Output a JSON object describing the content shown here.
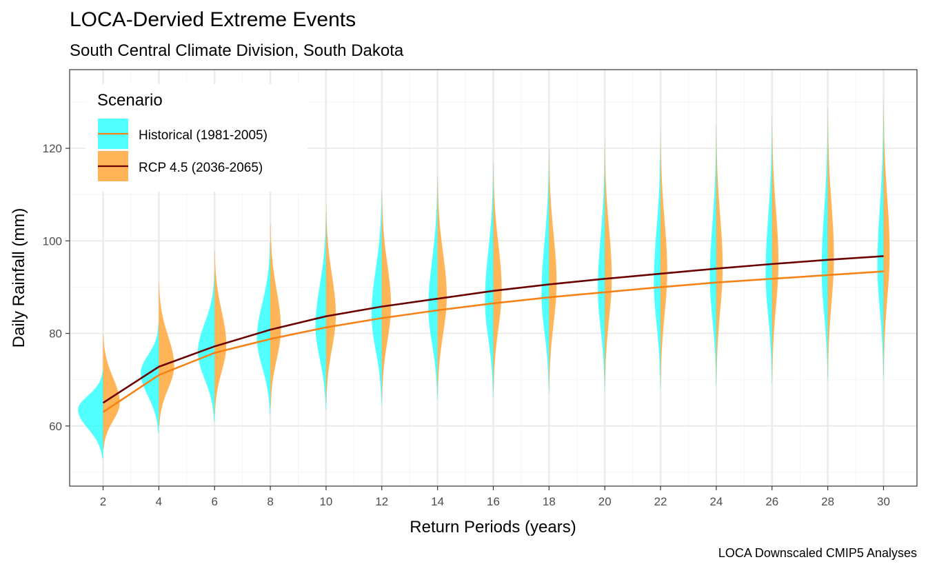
{
  "colors": {
    "historical_fill": "#00FFFF",
    "historical_line": "#F58216",
    "rcp45_fill": "#FFA028",
    "rcp45_line": "#6B0000",
    "grid_major": "#EBEBEB",
    "grid_minor": "#F4F4F4",
    "panel_border": "#333333"
  },
  "chart_data": {
    "type": "violin",
    "title": "LOCA-Dervied Extreme Events",
    "subtitle": "South Central Climate Division, South Dakota",
    "xlabel": "Return Periods (years)",
    "ylabel": "Daily Rainfall (mm)",
    "caption": "LOCA Downscaled CMIP5 Analyses",
    "x": [
      2,
      4,
      6,
      8,
      10,
      12,
      14,
      16,
      18,
      20,
      22,
      24,
      26,
      28,
      30
    ],
    "x_ticks": [
      2,
      4,
      6,
      8,
      10,
      12,
      14,
      16,
      18,
      20,
      22,
      24,
      26,
      28,
      30
    ],
    "y_ticks": [
      60,
      80,
      100,
      120
    ],
    "xlim": [
      0.8,
      31.2
    ],
    "ylim": [
      47,
      137
    ],
    "grid": true,
    "legend": {
      "title": "Scenario",
      "position": "top-left",
      "entries": [
        "Historical (1981-2005)",
        "RCP 4.5 (2036-2065)"
      ]
    },
    "series": [
      {
        "name": "Historical (1981-2005)",
        "side": "left",
        "median_line": [
          63,
          71,
          75.8,
          78.8,
          81.3,
          83.3,
          85,
          86.5,
          87.8,
          88.9,
          90,
          91,
          91.8,
          92.6,
          93.4
        ],
        "violin_min": [
          53,
          58.5,
          61,
          62.5,
          63.5,
          64.5,
          65.5,
          66,
          67,
          67.5,
          68,
          68.5,
          69,
          69.5,
          70
        ],
        "violin_max": [
          72,
          82,
          93,
          100,
          106,
          111,
          114,
          117,
          120,
          121,
          123,
          125,
          127,
          129,
          130
        ],
        "violin_mode": [
          63.5,
          71.5,
          76,
          79,
          81.5,
          84,
          85.5,
          87,
          88.5,
          89.5,
          91,
          92,
          93,
          93.5,
          94.5
        ],
        "violin_width": [
          0.9,
          0.65,
          0.6,
          0.48,
          0.38,
          0.37,
          0.33,
          0.3,
          0.27,
          0.25,
          0.24,
          0.23,
          0.23,
          0.22,
          0.22
        ]
      },
      {
        "name": "RCP 4.5 (2036-2065)",
        "side": "right",
        "median_line": [
          65,
          72.8,
          77.2,
          80.8,
          83.7,
          85.8,
          87.5,
          89.2,
          90.6,
          91.8,
          92.9,
          94,
          95,
          95.9,
          96.7
        ],
        "violin_min": [
          55,
          60,
          62.5,
          64,
          65,
          66,
          67,
          67.5,
          68,
          68.5,
          69,
          69.5,
          70,
          70.5,
          71
        ],
        "violin_max": [
          80,
          91,
          98,
          104,
          108,
          111,
          114,
          117,
          120,
          122,
          124,
          125,
          127,
          129,
          131
        ],
        "violin_mode": [
          65,
          73,
          77.5,
          81,
          84,
          86,
          88,
          89.5,
          91,
          92,
          93.5,
          94.5,
          95.5,
          96.5,
          97.5
        ],
        "violin_width": [
          0.6,
          0.55,
          0.42,
          0.38,
          0.35,
          0.33,
          0.33,
          0.3,
          0.27,
          0.25,
          0.24,
          0.23,
          0.23,
          0.22,
          0.22
        ]
      }
    ]
  }
}
